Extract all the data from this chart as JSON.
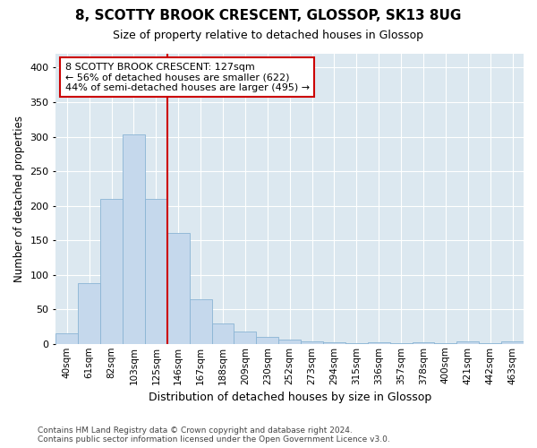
{
  "title": "8, SCOTTY BROOK CRESCENT, GLOSSOP, SK13 8UG",
  "subtitle": "Size of property relative to detached houses in Glossop",
  "xlabel": "Distribution of detached houses by size in Glossop",
  "ylabel": "Number of detached properties",
  "bar_color": "#c5d8ec",
  "bar_edge_color": "#8ab4d4",
  "plot_bg_color": "#dce8f0",
  "fig_bg_color": "#ffffff",
  "grid_color": "#ffffff",
  "categories": [
    "40sqm",
    "61sqm",
    "82sqm",
    "103sqm",
    "125sqm",
    "146sqm",
    "167sqm",
    "188sqm",
    "209sqm",
    "230sqm",
    "252sqm",
    "273sqm",
    "294sqm",
    "315sqm",
    "336sqm",
    "357sqm",
    "378sqm",
    "400sqm",
    "421sqm",
    "442sqm",
    "463sqm"
  ],
  "values": [
    15,
    88,
    210,
    303,
    210,
    160,
    65,
    30,
    18,
    10,
    6,
    3,
    2,
    1,
    2,
    1,
    2,
    1,
    4,
    1,
    3
  ],
  "ylim": [
    0,
    420
  ],
  "yticks": [
    0,
    50,
    100,
    150,
    200,
    250,
    300,
    350,
    400
  ],
  "annotation_line1": "8 SCOTTY BROOK CRESCENT: 127sqm",
  "annotation_line2": "← 56% of detached houses are smaller (622)",
  "annotation_line3": "44% of semi-detached houses are larger (495) →",
  "vline_color": "#cc0000",
  "annotation_box_facecolor": "#ffffff",
  "annotation_box_edgecolor": "#cc0000",
  "footer_line1": "Contains HM Land Registry data © Crown copyright and database right 2024.",
  "footer_line2": "Contains public sector information licensed under the Open Government Licence v3.0."
}
